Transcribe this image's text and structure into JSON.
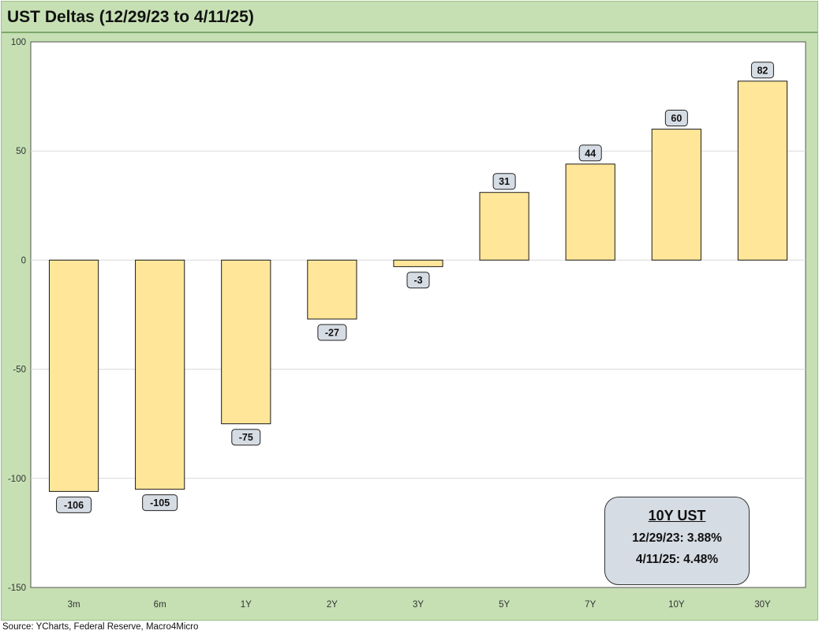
{
  "title": "UST Deltas (12/29/23 to 4/11/25)",
  "source": "Source: YCharts, Federal Reserve, Macro4Micro",
  "callout": {
    "title": "10Y UST",
    "line1": "12/29/23: 3.88%",
    "line2": "4/11/25: 4.48%"
  },
  "colors": {
    "bar_fill": "#ffe699",
    "bar_stroke": "#1a1a1a",
    "background": "#c6e0b4",
    "plot_area": "#ffffff",
    "label_box": "#d6dce4"
  },
  "chart_data": {
    "type": "bar",
    "title": "UST Deltas (12/29/23 to 4/11/25)",
    "categories": [
      "3m",
      "6m",
      "1Y",
      "2Y",
      "3Y",
      "5Y",
      "7Y",
      "10Y",
      "30Y"
    ],
    "values": [
      -106,
      -105,
      -75,
      -27,
      -3,
      31,
      44,
      60,
      82
    ],
    "data_labels": [
      "-106",
      "-105",
      "-75",
      "-27",
      "-3",
      "31",
      "44",
      "60",
      "82"
    ],
    "ylim": [
      -150,
      100
    ],
    "yticks": [
      100,
      50,
      0,
      -50,
      -100,
      -150
    ],
    "ytick_labels": [
      "100",
      "50",
      "0",
      "-50",
      "-100",
      "-150"
    ],
    "grid": true,
    "legend": false,
    "xlabel": "",
    "ylabel": ""
  }
}
